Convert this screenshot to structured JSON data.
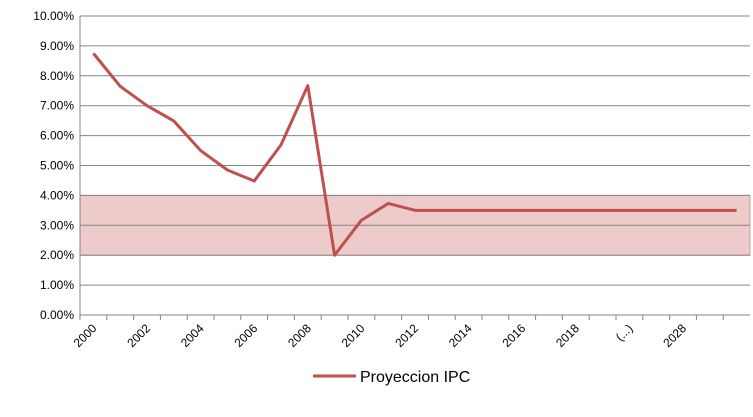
{
  "chart_data": {
    "type": "line",
    "categories": [
      "2000",
      null,
      "2002",
      null,
      "2004",
      null,
      "2006",
      null,
      "2008",
      null,
      "2010",
      null,
      "2012",
      null,
      "2014",
      null,
      "2016",
      null,
      "2018",
      null,
      "(...)",
      null,
      "2028",
      null,
      null
    ],
    "series": [
      {
        "name": "Proyeccion IPC",
        "color": "#c0504d",
        "values": [
          8.75,
          7.65,
          7.0,
          6.49,
          5.5,
          4.85,
          4.48,
          5.69,
          7.67,
          2.0,
          3.17,
          3.73,
          3.5,
          3.5,
          3.5,
          3.5,
          3.5,
          3.5,
          3.5,
          3.5,
          3.5,
          3.5,
          3.5,
          3.5,
          3.5
        ]
      }
    ],
    "band": {
      "from": 2,
      "to": 4,
      "color": "#e6b9b8"
    },
    "ylim": [
      0,
      10
    ],
    "yticks": [
      {
        "value": 0,
        "label": "0.00%"
      },
      {
        "value": 1,
        "label": "1.00%"
      },
      {
        "value": 2,
        "label": "2.00%"
      },
      {
        "value": 3,
        "label": "3.00%"
      },
      {
        "value": 4,
        "label": "4.00%"
      },
      {
        "value": 5,
        "label": "5.00%"
      },
      {
        "value": 6,
        "label": "6.00%"
      },
      {
        "value": 7,
        "label": "7.00%"
      },
      {
        "value": 8,
        "label": "8.00%"
      },
      {
        "value": 9,
        "label": "9.00%"
      },
      {
        "value": 10,
        "label": "10.00%"
      }
    ],
    "grid": true,
    "legend": "bottom"
  }
}
